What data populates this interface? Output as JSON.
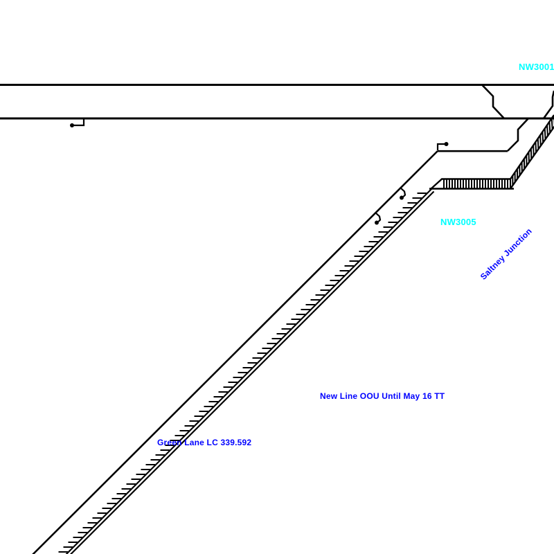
{
  "canvas": {
    "background": "#ffffff",
    "line_color": "#000000"
  },
  "labels": {
    "nw3001": {
      "text": "NW3001",
      "color": "#00ffff"
    },
    "nw3005": {
      "text": "NW3005",
      "color": "#00ffff"
    },
    "saltney_junction": {
      "text": "Saltney Junction",
      "color": "#0000ff"
    },
    "new_line_notice": {
      "text": "New Line OOU Until May 16 TT",
      "color": "#0000ff"
    },
    "green_lane_crossing": {
      "text": "Green Lane LC 339.592",
      "color": "#0000ff"
    }
  }
}
